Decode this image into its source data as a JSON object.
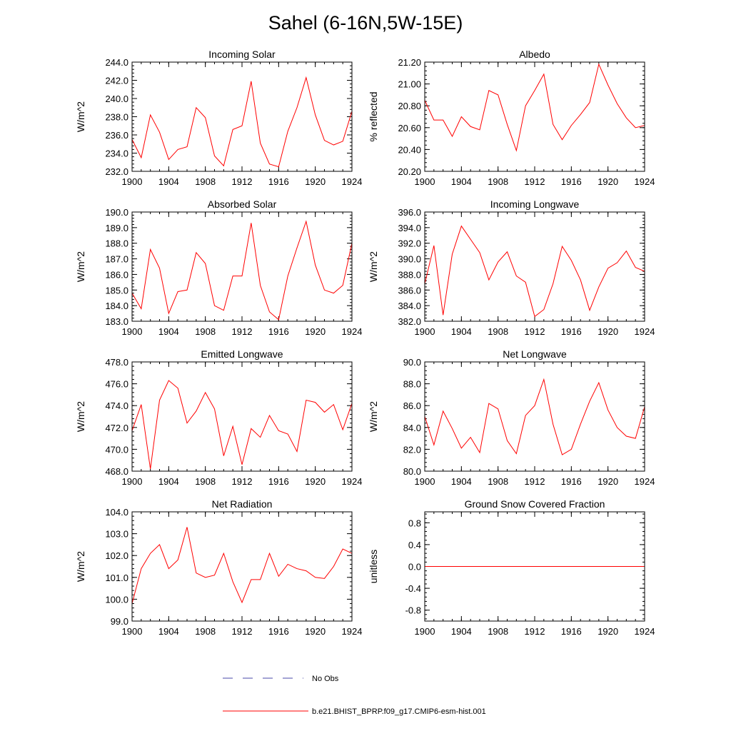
{
  "figure": {
    "title": "Sahel (6-16N,5W-15E)",
    "line_color": "#ff0000",
    "obs_color": "#4a4aa8",
    "legend": [
      {
        "label": "No Obs",
        "style": "dashed",
        "color": "#4a4aa8"
      },
      {
        "label": "b.e21.BHIST_BPRP.f09_g17.CMIP6-esm-hist.001",
        "style": "solid",
        "color": "#ff0000"
      }
    ]
  },
  "chart_data": [
    {
      "type": "line",
      "title": "Incoming Solar",
      "ylabel": "W/m^2",
      "xlabel": "",
      "x": [
        1900,
        1901,
        1902,
        1903,
        1904,
        1905,
        1906,
        1907,
        1908,
        1909,
        1910,
        1911,
        1912,
        1913,
        1914,
        1915,
        1916,
        1917,
        1918,
        1919,
        1920,
        1921,
        1922,
        1923,
        1924
      ],
      "xlim": [
        1900,
        1924
      ],
      "xticks": [
        "1900",
        "1904",
        "1908",
        "1912",
        "1916",
        "1920",
        "1924"
      ],
      "ylim": [
        232.0,
        244.0
      ],
      "yticks": [
        "232.0",
        "234.0",
        "236.0",
        "238.0",
        "240.0",
        "242.0",
        "244.0"
      ],
      "series": [
        {
          "name": "b.e21.BHIST_BPRP.f09_g17.CMIP6-esm-hist.001",
          "values": [
            235.5,
            233.5,
            238.2,
            236.3,
            233.3,
            234.4,
            234.7,
            239.0,
            237.9,
            233.7,
            232.6,
            236.6,
            237.0,
            241.9,
            235.1,
            232.8,
            232.5,
            236.4,
            239.0,
            242.3,
            238.2,
            235.4,
            234.9,
            235.3,
            238.6
          ]
        }
      ]
    },
    {
      "type": "line",
      "title": "Albedo",
      "ylabel": "% reflected",
      "xlabel": "",
      "x": [
        1900,
        1901,
        1902,
        1903,
        1904,
        1905,
        1906,
        1907,
        1908,
        1909,
        1910,
        1911,
        1912,
        1913,
        1914,
        1915,
        1916,
        1917,
        1918,
        1919,
        1920,
        1921,
        1922,
        1923,
        1924
      ],
      "xlim": [
        1900,
        1924
      ],
      "xticks": [
        "1900",
        "1904",
        "1908",
        "1912",
        "1916",
        "1920",
        "1924"
      ],
      "ylim": [
        20.2,
        21.2
      ],
      "yticks": [
        "20.20",
        "20.40",
        "20.60",
        "20.80",
        "21.00",
        "21.20"
      ],
      "series": [
        {
          "name": "b.e21.BHIST_BPRP.f09_g17.CMIP6-esm-hist.001",
          "values": [
            20.85,
            20.67,
            20.67,
            20.52,
            20.7,
            20.61,
            20.58,
            20.94,
            20.9,
            20.63,
            20.39,
            20.8,
            20.94,
            21.09,
            20.63,
            20.49,
            20.62,
            20.72,
            20.83,
            21.18,
            20.99,
            20.82,
            20.69,
            20.6,
            20.62
          ]
        }
      ]
    },
    {
      "type": "line",
      "title": "Absorbed Solar",
      "ylabel": "W/m^2",
      "xlabel": "",
      "x": [
        1900,
        1901,
        1902,
        1903,
        1904,
        1905,
        1906,
        1907,
        1908,
        1909,
        1910,
        1911,
        1912,
        1913,
        1914,
        1915,
        1916,
        1917,
        1918,
        1919,
        1920,
        1921,
        1922,
        1923,
        1924
      ],
      "xlim": [
        1900,
        1924
      ],
      "xticks": [
        "1900",
        "1904",
        "1908",
        "1912",
        "1916",
        "1920",
        "1924"
      ],
      "ylim": [
        183.0,
        190.0
      ],
      "yticks": [
        "183.0",
        "184.0",
        "185.0",
        "186.0",
        "187.0",
        "188.0",
        "189.0",
        "190.0"
      ],
      "series": [
        {
          "name": "b.e21.BHIST_BPRP.f09_g17.CMIP6-esm-hist.001",
          "values": [
            184.8,
            183.8,
            187.6,
            186.4,
            183.5,
            184.9,
            185.0,
            187.4,
            186.7,
            184.0,
            183.7,
            185.9,
            185.9,
            189.3,
            185.3,
            183.6,
            183.1,
            185.9,
            187.7,
            189.4,
            186.6,
            185.0,
            184.8,
            185.3,
            188.0
          ]
        }
      ]
    },
    {
      "type": "line",
      "title": "Incoming Longwave",
      "ylabel": "W/m^2",
      "xlabel": "",
      "x": [
        1900,
        1901,
        1902,
        1903,
        1904,
        1905,
        1906,
        1907,
        1908,
        1909,
        1910,
        1911,
        1912,
        1913,
        1914,
        1915,
        1916,
        1917,
        1918,
        1919,
        1920,
        1921,
        1922,
        1923,
        1924
      ],
      "xlim": [
        1900,
        1924
      ],
      "xticks": [
        "1900",
        "1904",
        "1908",
        "1912",
        "1916",
        "1920",
        "1924"
      ],
      "ylim": [
        382.0,
        396.0
      ],
      "yticks": [
        "382.0",
        "384.0",
        "386.0",
        "388.0",
        "390.0",
        "392.0",
        "394.0",
        "396.0"
      ],
      "series": [
        {
          "name": "b.e21.BHIST_BPRP.f09_g17.CMIP6-esm-hist.001",
          "values": [
            386.8,
            391.7,
            382.8,
            390.6,
            394.2,
            392.5,
            390.8,
            387.3,
            389.6,
            390.9,
            387.8,
            387.0,
            382.6,
            383.5,
            386.8,
            391.6,
            389.8,
            387.3,
            383.4,
            386.4,
            388.8,
            389.5,
            391.0,
            388.9,
            388.4
          ]
        }
      ]
    },
    {
      "type": "line",
      "title": "Emitted Longwave",
      "ylabel": "W/m^2",
      "xlabel": "",
      "x": [
        1900,
        1901,
        1902,
        1903,
        1904,
        1905,
        1906,
        1907,
        1908,
        1909,
        1910,
        1911,
        1912,
        1913,
        1914,
        1915,
        1916,
        1917,
        1918,
        1919,
        1920,
        1921,
        1922,
        1923,
        1924
      ],
      "xlim": [
        1900,
        1924
      ],
      "xticks": [
        "1900",
        "1904",
        "1908",
        "1912",
        "1916",
        "1920",
        "1924"
      ],
      "ylim": [
        468.0,
        478.0
      ],
      "yticks": [
        "468.0",
        "470.0",
        "472.0",
        "474.0",
        "476.0",
        "478.0"
      ],
      "series": [
        {
          "name": "b.e21.BHIST_BPRP.f09_g17.CMIP6-esm-hist.001",
          "values": [
            471.7,
            474.1,
            468.2,
            474.5,
            476.3,
            475.6,
            472.4,
            473.5,
            475.2,
            473.7,
            469.4,
            472.1,
            468.6,
            471.9,
            471.1,
            473.1,
            471.7,
            471.4,
            469.8,
            474.5,
            474.3,
            473.4,
            474.1,
            471.8,
            474.2
          ]
        }
      ]
    },
    {
      "type": "line",
      "title": "Net Longwave",
      "ylabel": "W/m^2",
      "xlabel": "",
      "x": [
        1900,
        1901,
        1902,
        1903,
        1904,
        1905,
        1906,
        1907,
        1908,
        1909,
        1910,
        1911,
        1912,
        1913,
        1914,
        1915,
        1916,
        1917,
        1918,
        1919,
        1920,
        1921,
        1922,
        1923,
        1924
      ],
      "xlim": [
        1900,
        1924
      ],
      "xticks": [
        "1900",
        "1904",
        "1908",
        "1912",
        "1916",
        "1920",
        "1924"
      ],
      "ylim": [
        80.0,
        90.0
      ],
      "yticks": [
        "80.0",
        "82.0",
        "84.0",
        "86.0",
        "88.0",
        "90.0"
      ],
      "series": [
        {
          "name": "b.e21.BHIST_BPRP.f09_g17.CMIP6-esm-hist.001",
          "values": [
            85.0,
            82.4,
            85.5,
            83.9,
            82.1,
            83.1,
            81.7,
            86.2,
            85.7,
            82.8,
            81.6,
            85.1,
            86.0,
            88.4,
            84.3,
            81.5,
            82.0,
            84.3,
            86.4,
            88.1,
            85.6,
            84.0,
            83.2,
            83.0,
            85.9
          ]
        }
      ]
    },
    {
      "type": "line",
      "title": "Net Radiation",
      "ylabel": "W/m^2",
      "xlabel": "",
      "x": [
        1900,
        1901,
        1902,
        1903,
        1904,
        1905,
        1906,
        1907,
        1908,
        1909,
        1910,
        1911,
        1912,
        1913,
        1914,
        1915,
        1916,
        1917,
        1918,
        1919,
        1920,
        1921,
        1922,
        1923,
        1924
      ],
      "xlim": [
        1900,
        1924
      ],
      "xticks": [
        "1900",
        "1904",
        "1908",
        "1912",
        "1916",
        "1920",
        "1924"
      ],
      "ylim": [
        99.0,
        104.0
      ],
      "yticks": [
        "99.0",
        "100.0",
        "101.0",
        "102.0",
        "103.0",
        "104.0"
      ],
      "series": [
        {
          "name": "b.e21.BHIST_BPRP.f09_g17.CMIP6-esm-hist.001",
          "values": [
            99.8,
            101.4,
            102.1,
            102.5,
            101.4,
            101.8,
            103.3,
            101.2,
            101.0,
            101.1,
            102.1,
            100.8,
            99.85,
            100.9,
            100.9,
            102.1,
            101.05,
            101.6,
            101.4,
            101.3,
            101.0,
            100.95,
            101.5,
            102.3,
            102.1
          ]
        }
      ]
    },
    {
      "type": "line",
      "title": "Ground Snow Covered Fraction",
      "ylabel": "unitless",
      "xlabel": "",
      "x": [
        1900,
        1901,
        1902,
        1903,
        1904,
        1905,
        1906,
        1907,
        1908,
        1909,
        1910,
        1911,
        1912,
        1913,
        1914,
        1915,
        1916,
        1917,
        1918,
        1919,
        1920,
        1921,
        1922,
        1923,
        1924
      ],
      "xlim": [
        1900,
        1924
      ],
      "xticks": [
        "1900",
        "1904",
        "1908",
        "1912",
        "1916",
        "1920",
        "1924"
      ],
      "ylim": [
        -1.0,
        1.0
      ],
      "yticks": [
        "-0.8",
        "-0.4",
        "0.0",
        "0.4",
        "0.8"
      ],
      "series": [
        {
          "name": "b.e21.BHIST_BPRP.f09_g17.CMIP6-esm-hist.001",
          "values": [
            0,
            0,
            0,
            0,
            0,
            0,
            0,
            0,
            0,
            0,
            0,
            0,
            0,
            0,
            0,
            0,
            0,
            0,
            0,
            0,
            0,
            0,
            0,
            0,
            0
          ]
        }
      ]
    }
  ]
}
